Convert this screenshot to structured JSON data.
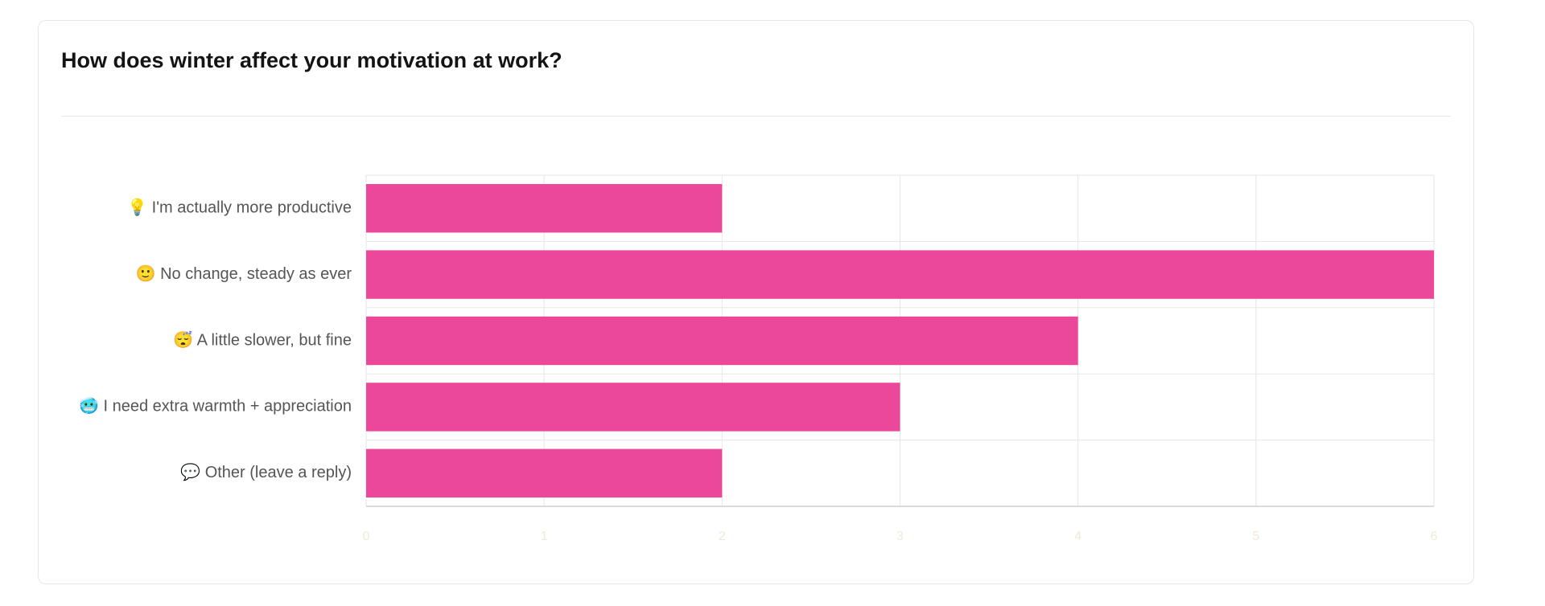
{
  "card": {
    "title": "How does winter affect your motivation at work?"
  },
  "colors": {
    "bar": "#ec4899",
    "grid": "#e6e6e6",
    "axis": "#cfcfcf",
    "label": "#555555",
    "tick": "#f1ead6"
  },
  "chart_data": {
    "type": "bar",
    "orientation": "horizontal",
    "categories": [
      "💡 I'm actually more productive",
      "🙂 No change, steady as ever",
      "😴 A little slower, but fine",
      "🥶 I need extra warmth + appreciation",
      "💬 Other (leave a reply)"
    ],
    "values": [
      2,
      6,
      4,
      3,
      2
    ],
    "xlim": [
      0,
      6
    ],
    "xticks": [
      0,
      1,
      2,
      3,
      4,
      5,
      6
    ],
    "grid": true,
    "title": "",
    "xlabel": "",
    "ylabel": ""
  }
}
